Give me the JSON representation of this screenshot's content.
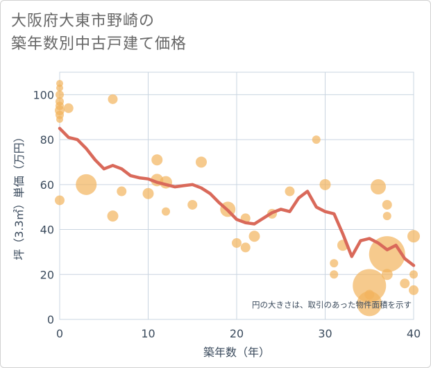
{
  "header": {
    "title_line1": "大阪府大東市野崎の",
    "title_line2": "築年数別中古戸建て価格"
  },
  "chart_data": {
    "type": "scatter",
    "xlabel": "築年数（年）",
    "ylabel": "坪（3.3㎡）単価（万円）",
    "xlim": [
      0,
      40
    ],
    "ylim": [
      0,
      110
    ],
    "x_ticks": [
      "0",
      "10",
      "20",
      "30",
      "40"
    ],
    "y_ticks": [
      "0",
      "20",
      "40",
      "60",
      "80",
      "100"
    ],
    "grid": true,
    "note": "円の大きさは、取引のあった物件面積を示す",
    "colors": {
      "bubble": "#f2b35c",
      "line": "#d9695a",
      "grid": "#c9d4e0"
    },
    "bubbles": [
      {
        "x": 0,
        "y": 105,
        "s": 5
      },
      {
        "x": 0,
        "y": 103,
        "s": 5
      },
      {
        "x": 0,
        "y": 100,
        "s": 6
      },
      {
        "x": 0,
        "y": 97,
        "s": 6
      },
      {
        "x": 0,
        "y": 95,
        "s": 6
      },
      {
        "x": 0,
        "y": 93,
        "s": 7
      },
      {
        "x": 0,
        "y": 91,
        "s": 6
      },
      {
        "x": 0,
        "y": 89,
        "s": 5
      },
      {
        "x": 0,
        "y": 53,
        "s": 7
      },
      {
        "x": 1,
        "y": 94,
        "s": 7
      },
      {
        "x": 3,
        "y": 60,
        "s": 15
      },
      {
        "x": 6,
        "y": 98,
        "s": 7
      },
      {
        "x": 6,
        "y": 46,
        "s": 8
      },
      {
        "x": 7,
        "y": 57,
        "s": 7
      },
      {
        "x": 10,
        "y": 56,
        "s": 8
      },
      {
        "x": 11,
        "y": 71,
        "s": 8
      },
      {
        "x": 11,
        "y": 62,
        "s": 9
      },
      {
        "x": 12,
        "y": 61,
        "s": 9
      },
      {
        "x": 12,
        "y": 48,
        "s": 6
      },
      {
        "x": 15,
        "y": 51,
        "s": 7
      },
      {
        "x": 16,
        "y": 70,
        "s": 8
      },
      {
        "x": 19,
        "y": 49,
        "s": 11
      },
      {
        "x": 20,
        "y": 34,
        "s": 7
      },
      {
        "x": 21,
        "y": 45,
        "s": 7
      },
      {
        "x": 21,
        "y": 32,
        "s": 7
      },
      {
        "x": 22,
        "y": 37,
        "s": 8
      },
      {
        "x": 24,
        "y": 47,
        "s": 7
      },
      {
        "x": 26,
        "y": 57,
        "s": 7
      },
      {
        "x": 29,
        "y": 80,
        "s": 6
      },
      {
        "x": 30,
        "y": 60,
        "s": 8
      },
      {
        "x": 31,
        "y": 25,
        "s": 6
      },
      {
        "x": 31,
        "y": 20,
        "s": 6
      },
      {
        "x": 32,
        "y": 33,
        "s": 8
      },
      {
        "x": 35,
        "y": 15,
        "s": 24
      },
      {
        "x": 35,
        "y": 11,
        "s": 7
      },
      {
        "x": 35,
        "y": 7,
        "s": 18
      },
      {
        "x": 36,
        "y": 59,
        "s": 11
      },
      {
        "x": 37,
        "y": 51,
        "s": 7
      },
      {
        "x": 37,
        "y": 46,
        "s": 6
      },
      {
        "x": 37,
        "y": 29,
        "s": 26
      },
      {
        "x": 37,
        "y": 20,
        "s": 8
      },
      {
        "x": 39,
        "y": 16,
        "s": 7
      },
      {
        "x": 40,
        "y": 37,
        "s": 9
      },
      {
        "x": 40,
        "y": 20,
        "s": 6
      },
      {
        "x": 40,
        "y": 13,
        "s": 7
      }
    ],
    "trend": [
      {
        "x": 0,
        "y": 85
      },
      {
        "x": 1,
        "y": 81
      },
      {
        "x": 2,
        "y": 80
      },
      {
        "x": 3,
        "y": 76
      },
      {
        "x": 4,
        "y": 71
      },
      {
        "x": 5,
        "y": 67
      },
      {
        "x": 6,
        "y": 68.5
      },
      {
        "x": 7,
        "y": 67
      },
      {
        "x": 8,
        "y": 64
      },
      {
        "x": 9,
        "y": 63
      },
      {
        "x": 10,
        "y": 62.5
      },
      {
        "x": 11,
        "y": 61
      },
      {
        "x": 12,
        "y": 60
      },
      {
        "x": 13,
        "y": 59
      },
      {
        "x": 14,
        "y": 59.5
      },
      {
        "x": 15,
        "y": 60
      },
      {
        "x": 16,
        "y": 58.5
      },
      {
        "x": 17,
        "y": 56
      },
      {
        "x": 18,
        "y": 52
      },
      {
        "x": 19,
        "y": 48.5
      },
      {
        "x": 20,
        "y": 44.5
      },
      {
        "x": 21,
        "y": 43
      },
      {
        "x": 22,
        "y": 42.5
      },
      {
        "x": 23,
        "y": 45
      },
      {
        "x": 24,
        "y": 47.5
      },
      {
        "x": 25,
        "y": 49
      },
      {
        "x": 26,
        "y": 48
      },
      {
        "x": 27,
        "y": 54
      },
      {
        "x": 28,
        "y": 57
      },
      {
        "x": 29,
        "y": 50
      },
      {
        "x": 30,
        "y": 48
      },
      {
        "x": 31,
        "y": 47
      },
      {
        "x": 32,
        "y": 38
      },
      {
        "x": 33,
        "y": 28
      },
      {
        "x": 34,
        "y": 35
      },
      {
        "x": 35,
        "y": 36
      },
      {
        "x": 36,
        "y": 34
      },
      {
        "x": 37,
        "y": 31
      },
      {
        "x": 38,
        "y": 33
      },
      {
        "x": 39,
        "y": 27
      },
      {
        "x": 40,
        "y": 24
      }
    ]
  }
}
